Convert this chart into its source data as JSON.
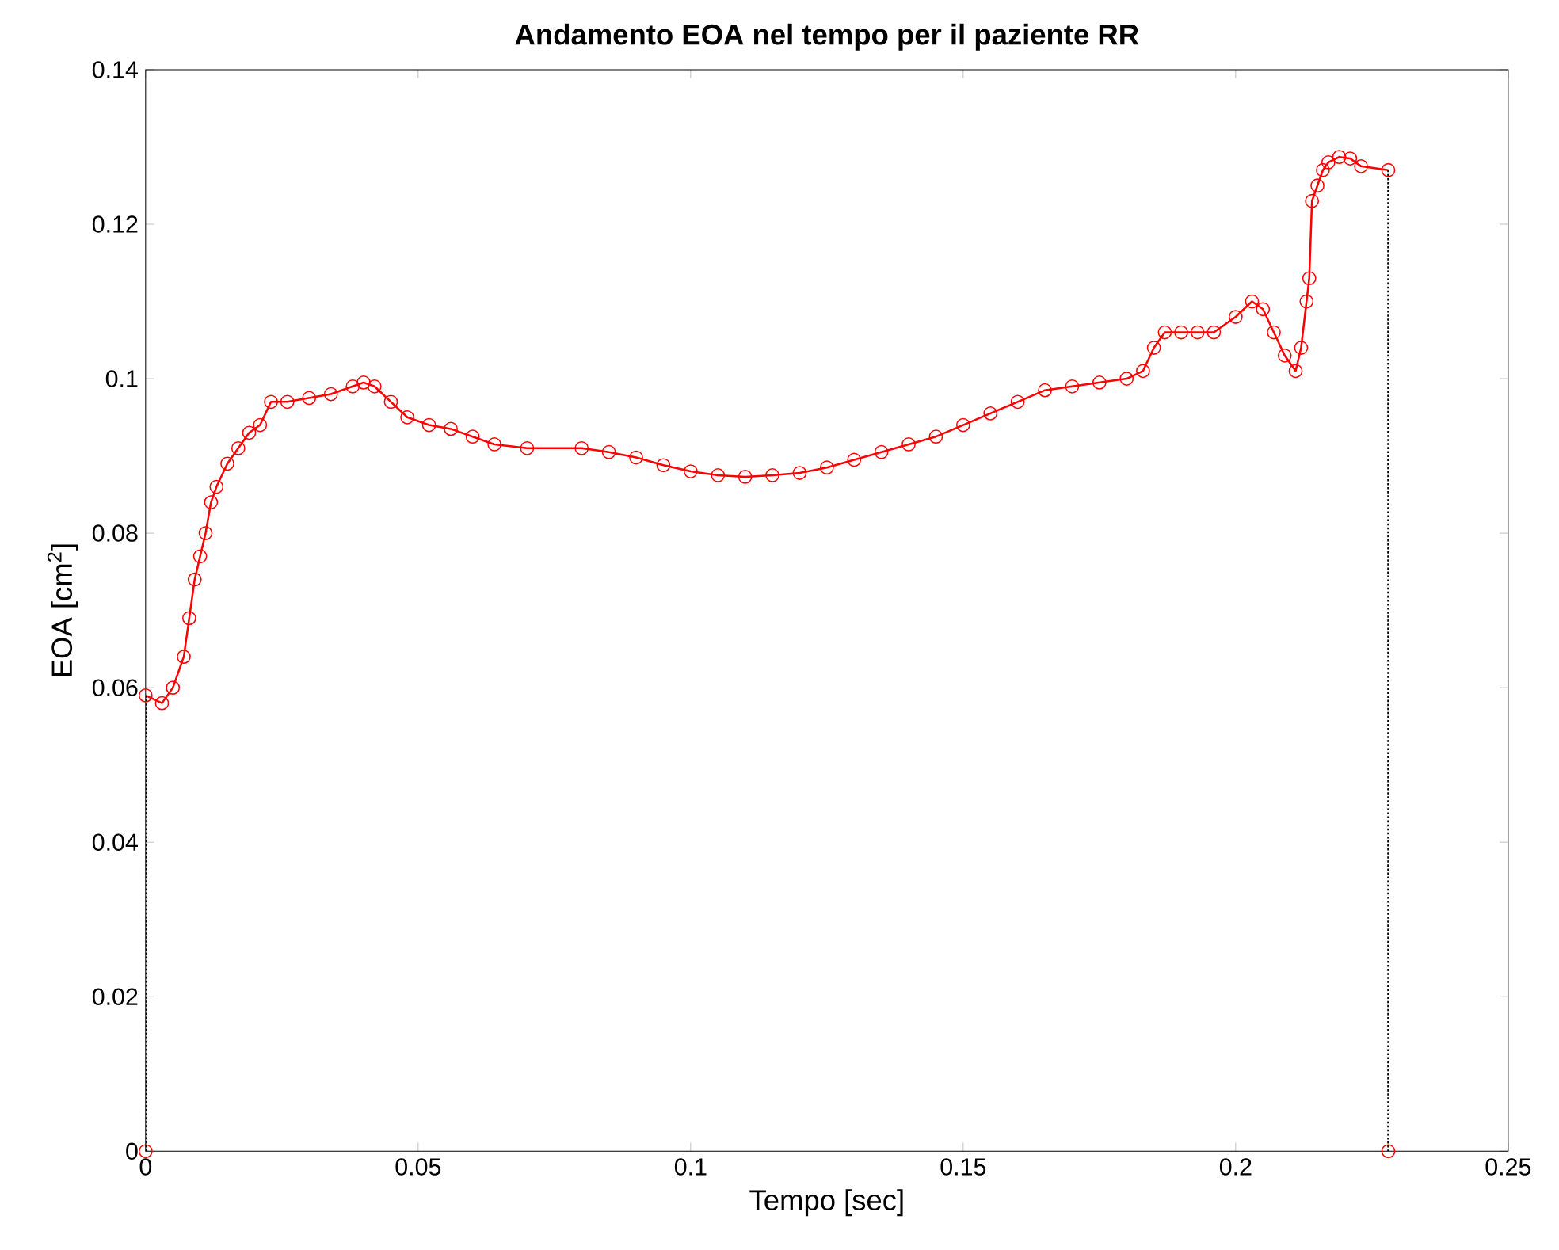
{
  "chart_data": {
    "type": "line",
    "title": "Andamento EOA nel tempo per il paziente RR",
    "xlabel": "Tempo [sec]",
    "ylabel": "EOA [cm$^{2}$]",
    "xlim": [
      0,
      0.25
    ],
    "ylim": [
      0,
      0.14
    ],
    "xticks": [
      0,
      0.05,
      0.1,
      0.15,
      0.2,
      0.25
    ],
    "yticks": [
      0,
      0.02,
      0.04,
      0.06,
      0.08,
      0.1,
      0.12,
      0.14
    ],
    "marker": "circle",
    "line_style": "solid",
    "series": [
      {
        "color": "#ff0000",
        "x": [
          0,
          0.003,
          0.005,
          0.007,
          0.008,
          0.009,
          0.01,
          0.011,
          0.012,
          0.013,
          0.015,
          0.017,
          0.019,
          0.021,
          0.023,
          0.026,
          0.03,
          0.034,
          0.038,
          0.04,
          0.042,
          0.045,
          0.048,
          0.052,
          0.056,
          0.06,
          0.064,
          0.07,
          0.08,
          0.085,
          0.09,
          0.095,
          0.1,
          0.105,
          0.11,
          0.115,
          0.12,
          0.125,
          0.13,
          0.135,
          0.14,
          0.145,
          0.15,
          0.155,
          0.16,
          0.165,
          0.17,
          0.175,
          0.18,
          0.183,
          0.185,
          0.187,
          0.19,
          0.193,
          0.196,
          0.2,
          0.203,
          0.205,
          0.207,
          0.209,
          0.211,
          0.212,
          0.213,
          0.2135,
          0.214,
          0.215,
          0.216,
          0.217,
          0.219,
          0.221,
          0.223,
          0.228
        ],
        "values": [
          0.059,
          0.058,
          0.06,
          0.064,
          0.069,
          0.074,
          0.077,
          0.08,
          0.084,
          0.086,
          0.089,
          0.091,
          0.093,
          0.094,
          0.097,
          0.097,
          0.0975,
          0.098,
          0.099,
          0.0995,
          0.099,
          0.097,
          0.095,
          0.094,
          0.0935,
          0.0925,
          0.0915,
          0.091,
          0.091,
          0.0905,
          0.0898,
          0.0888,
          0.088,
          0.0875,
          0.0873,
          0.0875,
          0.0878,
          0.0885,
          0.0895,
          0.0905,
          0.0915,
          0.0925,
          0.094,
          0.0955,
          0.097,
          0.0985,
          0.099,
          0.0995,
          0.1,
          0.101,
          0.104,
          0.106,
          0.106,
          0.106,
          0.106,
          0.108,
          0.11,
          0.109,
          0.106,
          0.103,
          0.101,
          0.104,
          0.11,
          0.113,
          0.123,
          0.125,
          0.127,
          0.128,
          0.1287,
          0.1285,
          0.1275,
          0.127
        ]
      },
      {
        "color": "#000000",
        "line_style": "dotted",
        "marker": "none",
        "x": [
          0,
          0
        ],
        "values": [
          0,
          0.059
        ]
      },
      {
        "color": "#000000",
        "line_style": "dotted",
        "marker": "none",
        "x": [
          0.228,
          0.228
        ],
        "values": [
          0.127,
          0
        ]
      },
      {
        "type": "scatter",
        "color": "#ff0000",
        "marker": "circle",
        "x": [
          0,
          0.228
        ],
        "values": [
          0,
          0
        ]
      }
    ]
  }
}
